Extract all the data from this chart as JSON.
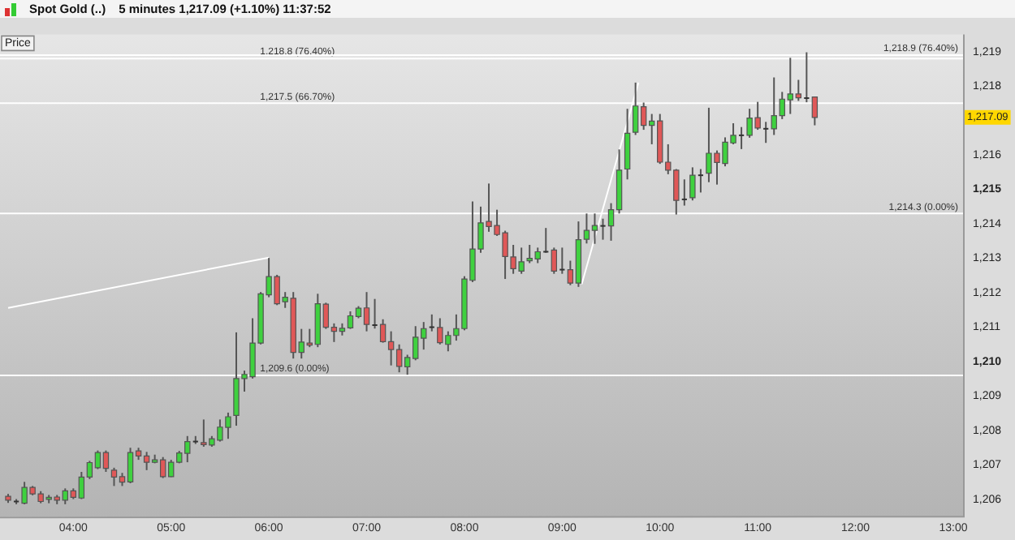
{
  "chart_data": {
    "type": "candlestick",
    "title": "Spot Gold (..)",
    "subtitle": "5 minutes   1,217.09 (+1.10%)   11:37:52",
    "x": [
      3.3333,
      3.4167,
      3.5,
      3.5833,
      3.6667,
      3.75,
      3.8333,
      3.9167,
      4,
      4.0833,
      4.1667,
      4.25,
      4.3333,
      4.4167,
      4.5,
      4.5833,
      4.6667,
      4.75,
      4.8333,
      4.9167,
      5,
      5.0833,
      5.1667,
      5.25,
      5.3333,
      5.4167,
      5.5,
      5.5833,
      5.6667,
      5.75,
      5.8333,
      5.9167,
      6,
      6.0833,
      6.1667,
      6.25,
      6.3333,
      6.4167,
      6.5,
      6.5833,
      6.6667,
      6.75,
      6.8333,
      6.9167,
      7,
      7.0833,
      7.1667,
      7.25,
      7.3333,
      7.4167,
      7.5,
      7.5833,
      7.6667,
      7.75,
      7.8333,
      7.9167,
      8,
      8.0833,
      8.1667,
      8.25,
      8.3333,
      8.4167,
      8.5,
      8.5833,
      8.6667,
      8.75,
      8.8333,
      8.9167,
      9,
      9.0833,
      9.1667,
      9.25,
      9.3333,
      9.4167,
      9.5,
      9.5833,
      9.6667,
      9.75,
      9.8333,
      9.9167,
      10,
      10.0833,
      10.1667,
      10.25,
      10.3333,
      10.4167,
      10.5,
      10.5833,
      10.6667,
      10.75,
      10.8333,
      10.9167,
      11,
      11.0833,
      11.1667,
      11.25,
      11.3333,
      11.4167,
      11.5,
      11.5833
    ],
    "ohlc": [
      [
        1206.09,
        1206.16,
        1205.9,
        1205.98
      ],
      [
        1205.94,
        1206.01,
        1205.86,
        1205.94
      ],
      [
        1205.89,
        1206.51,
        1205.86,
        1206.35
      ],
      [
        1206.35,
        1206.39,
        1206.12,
        1206.16
      ],
      [
        1206.16,
        1206.24,
        1205.89,
        1205.94
      ],
      [
        1206.0,
        1206.13,
        1205.89,
        1206.06
      ],
      [
        1206.07,
        1206.13,
        1205.86,
        1205.98
      ],
      [
        1205.98,
        1206.32,
        1205.86,
        1206.25
      ],
      [
        1206.25,
        1206.32,
        1206.01,
        1206.06
      ],
      [
        1206.04,
        1206.8,
        1206.01,
        1206.65
      ],
      [
        1206.65,
        1207.12,
        1206.59,
        1207.07
      ],
      [
        1206.92,
        1207.42,
        1206.88,
        1207.36
      ],
      [
        1207.36,
        1207.42,
        1206.8,
        1206.9
      ],
      [
        1206.85,
        1206.92,
        1206.39,
        1206.65
      ],
      [
        1206.66,
        1206.77,
        1206.39,
        1206.5
      ],
      [
        1206.51,
        1207.5,
        1206.47,
        1207.36
      ],
      [
        1207.41,
        1207.5,
        1207.15,
        1207.26
      ],
      [
        1207.26,
        1207.38,
        1206.85,
        1207.08
      ],
      [
        1207.08,
        1207.3,
        1207.05,
        1207.15
      ],
      [
        1207.15,
        1207.23,
        1206.62,
        1206.66
      ],
      [
        1206.66,
        1207.15,
        1206.65,
        1207.08
      ],
      [
        1207.08,
        1207.41,
        1207.05,
        1207.35
      ],
      [
        1207.34,
        1207.84,
        1207.08,
        1207.68
      ],
      [
        1207.68,
        1207.84,
        1207.61,
        1207.68
      ],
      [
        1207.65,
        1208.32,
        1207.53,
        1207.59
      ],
      [
        1207.58,
        1207.84,
        1207.53,
        1207.76
      ],
      [
        1207.72,
        1208.32,
        1207.68,
        1208.1
      ],
      [
        1208.09,
        1208.52,
        1207.76,
        1208.4
      ],
      [
        1208.44,
        1210.85,
        1208.14,
        1209.51
      ],
      [
        1209.51,
        1209.74,
        1209.13,
        1209.63
      ],
      [
        1209.56,
        1211.26,
        1209.51,
        1210.54
      ],
      [
        1210.54,
        1212.02,
        1210.5,
        1211.97
      ],
      [
        1211.94,
        1213.01,
        1211.87,
        1212.47
      ],
      [
        1212.47,
        1212.52,
        1211.64,
        1211.68
      ],
      [
        1211.74,
        1212.02,
        1211.56,
        1211.87
      ],
      [
        1211.84,
        1212.02,
        1210.09,
        1210.27
      ],
      [
        1210.27,
        1210.95,
        1210.09,
        1210.57
      ],
      [
        1210.54,
        1210.95,
        1210.42,
        1210.48
      ],
      [
        1210.5,
        1211.97,
        1210.42,
        1211.68
      ],
      [
        1211.67,
        1211.71,
        1210.95,
        1211.0
      ],
      [
        1211.0,
        1211.11,
        1210.57,
        1210.88
      ],
      [
        1210.88,
        1211.11,
        1210.76,
        1210.97
      ],
      [
        1210.98,
        1211.46,
        1210.95,
        1211.33
      ],
      [
        1211.31,
        1211.61,
        1211.26,
        1211.55
      ],
      [
        1211.56,
        1212.02,
        1210.88,
        1211.08
      ],
      [
        1211.06,
        1211.82,
        1210.96,
        1211.06
      ],
      [
        1211.08,
        1211.23,
        1210.55,
        1210.58
      ],
      [
        1210.58,
        1210.88,
        1209.89,
        1210.35
      ],
      [
        1210.35,
        1210.5,
        1209.69,
        1209.86
      ],
      [
        1209.85,
        1210.2,
        1209.62,
        1210.12
      ],
      [
        1210.09,
        1211.03,
        1210.04,
        1210.71
      ],
      [
        1210.68,
        1211.15,
        1210.35,
        1210.96
      ],
      [
        1211.0,
        1211.37,
        1210.88,
        1211.0
      ],
      [
        1210.99,
        1211.26,
        1210.5,
        1210.55
      ],
      [
        1210.5,
        1210.88,
        1210.3,
        1210.76
      ],
      [
        1210.76,
        1211.37,
        1210.61,
        1210.96
      ],
      [
        1210.96,
        1212.48,
        1210.91,
        1212.4
      ],
      [
        1212.36,
        1214.65,
        1212.31,
        1213.27
      ],
      [
        1213.27,
        1214.5,
        1213.16,
        1214.03
      ],
      [
        1214.07,
        1215.17,
        1213.77,
        1213.92
      ],
      [
        1213.95,
        1214.41,
        1213.65,
        1213.69
      ],
      [
        1213.74,
        1213.8,
        1212.4,
        1213.05
      ],
      [
        1213.04,
        1213.39,
        1212.55,
        1212.7
      ],
      [
        1212.63,
        1213.31,
        1212.55,
        1212.9
      ],
      [
        1212.93,
        1213.39,
        1212.86,
        1213.0
      ],
      [
        1212.98,
        1213.31,
        1212.86,
        1213.19
      ],
      [
        1213.19,
        1213.88,
        1213.16,
        1213.19
      ],
      [
        1213.24,
        1213.31,
        1212.55,
        1212.63
      ],
      [
        1212.67,
        1213.31,
        1212.55,
        1212.67
      ],
      [
        1212.67,
        1212.93,
        1212.22,
        1212.28
      ],
      [
        1212.28,
        1214.07,
        1212.17,
        1213.54
      ],
      [
        1213.55,
        1214.3,
        1213.43,
        1213.81
      ],
      [
        1213.81,
        1214.3,
        1213.42,
        1213.95
      ],
      [
        1213.94,
        1214.15,
        1213.54,
        1213.94
      ],
      [
        1213.94,
        1214.6,
        1213.51,
        1214.41
      ],
      [
        1214.41,
        1216.16,
        1214.3,
        1215.56
      ],
      [
        1215.59,
        1217.34,
        1215.29,
        1216.63
      ],
      [
        1216.66,
        1218.1,
        1216.58,
        1217.42
      ],
      [
        1217.4,
        1217.52,
        1216.73,
        1216.86
      ],
      [
        1216.86,
        1217.19,
        1216.31,
        1216.98
      ],
      [
        1216.99,
        1217.19,
        1215.74,
        1215.79
      ],
      [
        1215.79,
        1216.31,
        1215.44,
        1215.56
      ],
      [
        1215.56,
        1215.59,
        1214.27,
        1214.68
      ],
      [
        1214.71,
        1215.29,
        1214.53,
        1214.71
      ],
      [
        1214.76,
        1215.64,
        1214.68,
        1215.41
      ],
      [
        1215.41,
        1215.59,
        1214.91,
        1215.41
      ],
      [
        1215.47,
        1217.37,
        1215.21,
        1216.05
      ],
      [
        1216.05,
        1216.13,
        1215.14,
        1215.78
      ],
      [
        1215.75,
        1216.51,
        1215.67,
        1216.37
      ],
      [
        1216.35,
        1216.92,
        1216.31,
        1216.57
      ],
      [
        1216.57,
        1216.81,
        1216.17,
        1216.57
      ],
      [
        1216.57,
        1217.34,
        1216.5,
        1217.07
      ],
      [
        1217.08,
        1217.54,
        1216.73,
        1216.78
      ],
      [
        1216.76,
        1216.96,
        1216.35,
        1216.76
      ],
      [
        1216.76,
        1218.25,
        1216.58,
        1217.14
      ],
      [
        1217.14,
        1217.83,
        1217.04,
        1217.62
      ],
      [
        1217.6,
        1218.82,
        1217.19,
        1217.77
      ],
      [
        1217.77,
        1218.18,
        1217.57,
        1217.66
      ],
      [
        1217.65,
        1218.98,
        1217.53,
        1217.65
      ],
      [
        1217.68,
        1217.68,
        1216.86,
        1217.09
      ]
    ],
    "series": [
      {
        "type": "line",
        "color": "#ffffff",
        "x": [
          3.3333,
          6.0
        ],
        "values": [
          1211.56,
          1213.02
        ]
      },
      {
        "type": "line",
        "color": "#ffffff",
        "x": [
          9.2,
          9.78
        ],
        "values": [
          1212.25,
          1218.1
        ]
      }
    ],
    "ref_lines": [
      {
        "axis": "y",
        "value": 1218.8,
        "label": "1,218.8 (76.40%)",
        "color": "#ffffff"
      },
      {
        "axis": "y",
        "value": 1218.9,
        "label": "1,218.9 (76.40%)",
        "color": "#ffffff"
      },
      {
        "axis": "y",
        "value": 1217.5,
        "label": "1,217.5 (66.70%)",
        "color": "#ffffff"
      },
      {
        "axis": "y",
        "value": 1214.3,
        "label": "1,214.3 (0.00%)",
        "color": "#ffffff"
      },
      {
        "axis": "y",
        "value": 1209.6,
        "label": "1,209.6 (0.00%)",
        "color": "#ffffff"
      }
    ],
    "annotations": [
      "Price",
      "1,217.09"
    ],
    "xlim": [
      3.25,
      13.1
    ],
    "xticks": [
      {
        "value": 4,
        "label": "04:00"
      },
      {
        "value": 5,
        "label": "05:00"
      },
      {
        "value": 6,
        "label": "06:00"
      },
      {
        "value": 7,
        "label": "07:00"
      },
      {
        "value": 8,
        "label": "08:00"
      },
      {
        "value": 9,
        "label": "09:00"
      },
      {
        "value": 10,
        "label": "10:00"
      },
      {
        "value": 11,
        "label": "11:00"
      },
      {
        "value": 12,
        "label": "12:00"
      },
      {
        "value": 13,
        "label": "13:00"
      }
    ],
    "ylim": [
      1205.5,
      1219.5
    ],
    "yticks": [
      {
        "value": 1206,
        "label": "1,206"
      },
      {
        "value": 1207,
        "label": "1,207"
      },
      {
        "value": 1208,
        "label": "1,208"
      },
      {
        "value": 1209,
        "label": "1,209"
      },
      {
        "value": 1210,
        "label": "1,210"
      },
      {
        "value": 1211,
        "label": "1,211"
      },
      {
        "value": 1212,
        "label": "1,212"
      },
      {
        "value": 1213,
        "label": "1,213"
      },
      {
        "value": 1214,
        "label": "1,214"
      },
      {
        "value": 1215,
        "label": "1,215"
      },
      {
        "value": 1216,
        "label": "1,216"
      },
      {
        "value": 1218,
        "label": "1,218"
      },
      {
        "value": 1219,
        "label": "1,219"
      }
    ],
    "grid": false,
    "legend": false
  }
}
